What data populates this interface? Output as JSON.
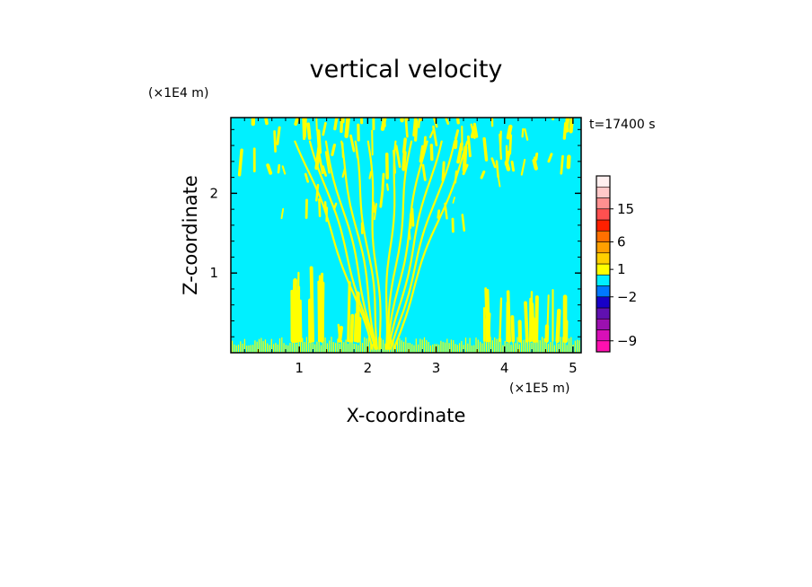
{
  "chart_data": {
    "type": "heatmap",
    "title": "vertical velocity",
    "xlabel": "X-coordinate",
    "ylabel": "Z-coordinate",
    "x_unit": "(×1E5 m)",
    "y_unit": "(×1E4 m)",
    "time_label": "t=17400 s",
    "xlim": [
      0,
      5.12
    ],
    "ylim": [
      0,
      2.95
    ],
    "x_ticks": [
      1,
      2,
      3,
      4,
      5
    ],
    "y_ticks": [
      1,
      2
    ],
    "background_color": "#00f0ff",
    "feature_color": "#ffff00",
    "colorbar": {
      "levels": [
        {
          "color": "#ff10b0"
        },
        {
          "color": "#d810b8"
        },
        {
          "color": "#9c10b0"
        },
        {
          "color": "#6010b0"
        },
        {
          "color": "#1800c8"
        },
        {
          "color": "#0078ff"
        },
        {
          "color": "#00f0ff"
        },
        {
          "color": "#ffff00"
        },
        {
          "color": "#ffd000"
        },
        {
          "color": "#ffa000"
        },
        {
          "color": "#ff7000"
        },
        {
          "color": "#ff2000"
        },
        {
          "color": "#ff5050"
        },
        {
          "color": "#ff9090"
        },
        {
          "color": "#ffc8c8"
        },
        {
          "color": "#fff0f0"
        }
      ],
      "labels": [
        {
          "text": "−9",
          "at_level": 1
        },
        {
          "text": "−2",
          "at_level": 5
        },
        {
          "text": "1",
          "at_level": 7.5
        },
        {
          "text": "6",
          "at_level": 10
        },
        {
          "text": "15",
          "at_level": 13
        }
      ]
    }
  }
}
